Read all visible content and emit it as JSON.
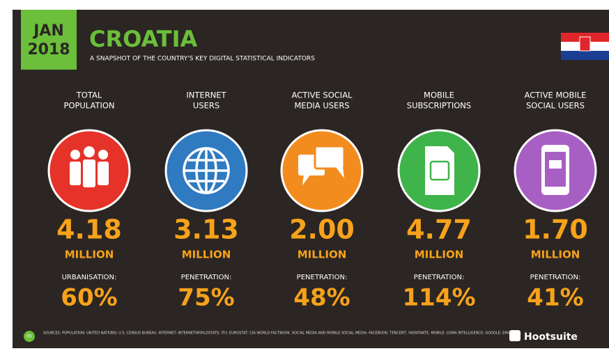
{
  "header": {
    "month": "JAN",
    "year": "2018",
    "title": "CROATIA",
    "subtitle": "A SNAPSHOT OF THE COUNTRY'S KEY DIGITAL STATISTICAL INDICATORS"
  },
  "indicators": [
    {
      "label": [
        "TOTAL",
        "POPULATION"
      ],
      "value": "4.18",
      "unit": "MILLION",
      "sub_label": "URBANISATION:",
      "sub_value": "60%"
    },
    {
      "label": [
        "INTERNET",
        "USERS"
      ],
      "value": "3.13",
      "unit": "MILLION",
      "sub_label": "PENETRATION:",
      "sub_value": "75%"
    },
    {
      "label": [
        "ACTIVE SOCIAL",
        "MEDIA USERS"
      ],
      "value": "2.00",
      "unit": "MILLION",
      "sub_label": "PENETRATION:",
      "sub_value": "48%"
    },
    {
      "label": [
        "MOBILE",
        "SUBSCRIPTIONS"
      ],
      "value": "4.77",
      "unit": "MILLION",
      "sub_label": "PENETRATION:",
      "sub_value": "114%"
    },
    {
      "label": [
        "ACTIVE MOBILE",
        "SOCIAL USERS"
      ],
      "value": "1.70",
      "unit": "MILLION",
      "sub_label": "PENETRATION:",
      "sub_value": "41%"
    }
  ],
  "footer": {
    "page": "65",
    "sources": "SOURCES: POPULATION: UNITED NATIONS; U.S. CENSUS BUREAU. INTERNET: INTERNETWORLDSTATS; ITU; EUROSTAT; CIA WORLD FACTBOOK. SOCIAL MEDIA AND MOBILE SOCIAL MEDIA: FACEBOOK; TENCENT; VKONTAKTE. MOBILE: GSMA INTELLIGENCE; GOOGLE; ERICSSON.",
    "brand": "Hootsuite"
  }
}
